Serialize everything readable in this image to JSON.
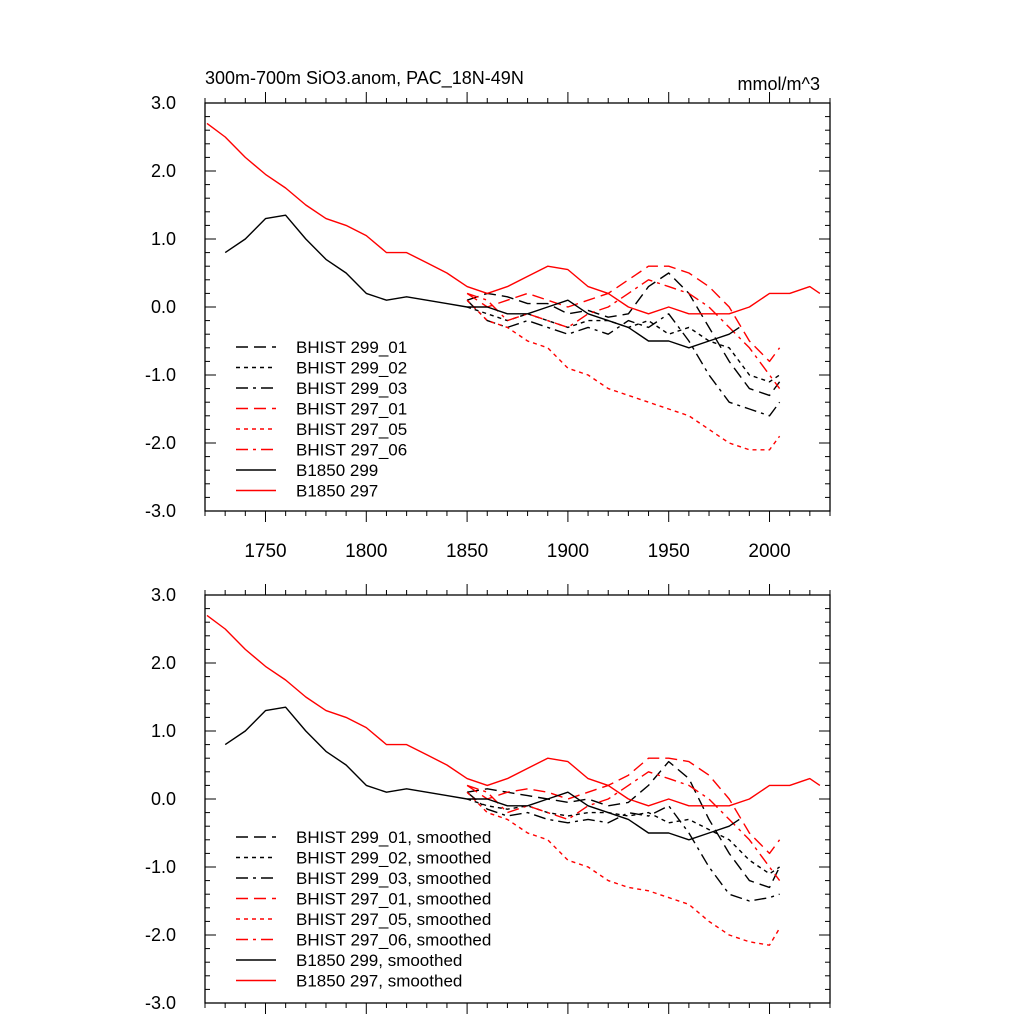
{
  "chart_data": [
    {
      "type": "line",
      "title": "300m-700m SiO3.anom, PAC_18N-49N",
      "units": "mmol/m^3",
      "xlim": [
        1720,
        2030
      ],
      "ylim": [
        -3.0,
        3.0
      ],
      "xticks": [
        1750,
        1800,
        1850,
        1900,
        1950,
        2000
      ],
      "xtick_labels": [
        "1750",
        "1800",
        "1850",
        "1900",
        "1950",
        "2000"
      ],
      "yticks": [
        3.0,
        2.0,
        1.0,
        0.0,
        -1.0,
        -2.0,
        -3.0
      ],
      "ytick_labels": [
        "3.0",
        "2.0",
        "1.0",
        "0.0",
        "-1.0",
        "-2.0",
        "-3.0"
      ],
      "legend_position": "bottom-left",
      "series": [
        {
          "name": "BHIST 299_01",
          "color": "#000000",
          "dash": "long-dash",
          "x": [
            1850,
            1860,
            1870,
            1880,
            1890,
            1900,
            1910,
            1920,
            1930,
            1940,
            1950,
            1960,
            1970,
            1980,
            1990,
            2000,
            2005
          ],
          "y": [
            0.1,
            0.2,
            0.15,
            0.05,
            0.05,
            -0.1,
            -0.05,
            -0.15,
            -0.1,
            0.3,
            0.5,
            0.2,
            -0.3,
            -0.8,
            -1.2,
            -1.3,
            -1.1
          ]
        },
        {
          "name": "BHIST 299_02",
          "color": "#000000",
          "dash": "short-dash",
          "x": [
            1850,
            1860,
            1870,
            1880,
            1890,
            1900,
            1910,
            1920,
            1930,
            1940,
            1950,
            1960,
            1970,
            1980,
            1990,
            2000,
            2005
          ],
          "y": [
            0.0,
            -0.1,
            -0.2,
            -0.1,
            -0.2,
            -0.3,
            -0.2,
            -0.2,
            -0.3,
            -0.2,
            -0.4,
            -0.3,
            -0.5,
            -0.6,
            -1.0,
            -1.1,
            -1.0
          ]
        },
        {
          "name": "BHIST 299_03",
          "color": "#000000",
          "dash": "dash-dot",
          "x": [
            1850,
            1860,
            1870,
            1880,
            1890,
            1900,
            1910,
            1920,
            1930,
            1940,
            1950,
            1960,
            1970,
            1980,
            1990,
            2000,
            2005
          ],
          "y": [
            0.1,
            -0.2,
            -0.3,
            -0.2,
            -0.3,
            -0.4,
            -0.3,
            -0.4,
            -0.2,
            -0.3,
            -0.1,
            -0.5,
            -1.0,
            -1.4,
            -1.5,
            -1.6,
            -1.4
          ]
        },
        {
          "name": "BHIST 297_01",
          "color": "#ff0000",
          "dash": "long-dash",
          "x": [
            1850,
            1860,
            1870,
            1880,
            1890,
            1900,
            1910,
            1920,
            1930,
            1940,
            1950,
            1960,
            1970,
            1980,
            1990,
            2000,
            2005
          ],
          "y": [
            0.2,
            0.0,
            0.1,
            0.2,
            0.1,
            0.0,
            0.1,
            0.2,
            0.4,
            0.6,
            0.6,
            0.5,
            0.3,
            0.0,
            -0.5,
            -0.8,
            -0.6
          ]
        },
        {
          "name": "BHIST 297_05",
          "color": "#ff0000",
          "dash": "short-dash",
          "x": [
            1850,
            1860,
            1870,
            1880,
            1890,
            1900,
            1910,
            1920,
            1930,
            1940,
            1950,
            1960,
            1970,
            1980,
            1990,
            2000,
            2005
          ],
          "y": [
            0.1,
            -0.2,
            -0.3,
            -0.5,
            -0.6,
            -0.9,
            -1.0,
            -1.2,
            -1.3,
            -1.4,
            -1.5,
            -1.6,
            -1.8,
            -2.0,
            -2.1,
            -2.1,
            -1.9
          ]
        },
        {
          "name": "BHIST 297_06",
          "color": "#ff0000",
          "dash": "dash-dot",
          "x": [
            1850,
            1860,
            1870,
            1880,
            1890,
            1900,
            1910,
            1920,
            1930,
            1940,
            1950,
            1960,
            1970,
            1980,
            1990,
            2000,
            2005
          ],
          "y": [
            0.2,
            0.1,
            -0.2,
            -0.1,
            -0.2,
            -0.3,
            -0.1,
            0.0,
            0.2,
            0.4,
            0.3,
            0.2,
            0.0,
            -0.3,
            -0.6,
            -1.0,
            -1.2
          ]
        },
        {
          "name": "B1850 299",
          "color": "#000000",
          "dash": "solid",
          "x": [
            1730,
            1740,
            1750,
            1760,
            1770,
            1780,
            1790,
            1800,
            1810,
            1820,
            1830,
            1840,
            1850,
            1860,
            1870,
            1880,
            1890,
            1900,
            1910,
            1920,
            1930,
            1940,
            1950,
            1960,
            1970,
            1980,
            1985
          ],
          "y": [
            0.8,
            1.0,
            1.3,
            1.35,
            1.0,
            0.7,
            0.5,
            0.2,
            0.1,
            0.15,
            0.1,
            0.05,
            0.0,
            0.0,
            -0.1,
            -0.1,
            0.0,
            0.1,
            -0.1,
            -0.2,
            -0.3,
            -0.5,
            -0.5,
            -0.6,
            -0.5,
            -0.4,
            -0.3
          ]
        },
        {
          "name": "B1850 297",
          "color": "#ff0000",
          "dash": "solid",
          "x": [
            1721,
            1730,
            1740,
            1750,
            1760,
            1770,
            1780,
            1790,
            1800,
            1810,
            1820,
            1830,
            1840,
            1850,
            1860,
            1870,
            1880,
            1890,
            1900,
            1910,
            1920,
            1930,
            1940,
            1950,
            1960,
            1970,
            1980,
            1990,
            2000,
            2010,
            2020,
            2025
          ],
          "y": [
            2.7,
            2.5,
            2.2,
            1.95,
            1.75,
            1.5,
            1.3,
            1.2,
            1.05,
            0.8,
            0.8,
            0.65,
            0.5,
            0.3,
            0.2,
            0.3,
            0.45,
            0.6,
            0.55,
            0.3,
            0.2,
            0.0,
            -0.1,
            0.0,
            -0.1,
            -0.1,
            -0.1,
            0.0,
            0.2,
            0.2,
            0.3,
            0.2
          ]
        }
      ]
    },
    {
      "type": "line",
      "xlim": [
        1720,
        2030
      ],
      "ylim": [
        -3.0,
        3.0
      ],
      "yticks": [
        3.0,
        2.0,
        1.0,
        0.0,
        -1.0,
        -2.0,
        -3.0
      ],
      "ytick_labels": [
        "3.0",
        "2.0",
        "1.0",
        "0.0",
        "-1.0",
        "-2.0",
        "-3.0"
      ],
      "legend_position": "bottom-left",
      "series": [
        {
          "name": "BHIST 299_01, smoothed",
          "color": "#000000",
          "dash": "long-dash",
          "x": [
            1850,
            1860,
            1870,
            1880,
            1890,
            1900,
            1910,
            1920,
            1930,
            1940,
            1950,
            1960,
            1970,
            1980,
            1990,
            2000,
            2005
          ],
          "y": [
            0.1,
            0.15,
            0.1,
            0.05,
            0.0,
            -0.05,
            0.0,
            -0.1,
            -0.05,
            0.2,
            0.55,
            0.3,
            -0.3,
            -0.8,
            -1.2,
            -1.3,
            -1.0
          ]
        },
        {
          "name": "BHIST 299_02, smoothed",
          "color": "#000000",
          "dash": "short-dash",
          "x": [
            1850,
            1860,
            1870,
            1880,
            1890,
            1900,
            1910,
            1920,
            1930,
            1940,
            1950,
            1960,
            1970,
            1980,
            1990,
            2000,
            2005
          ],
          "y": [
            0.0,
            -0.1,
            -0.15,
            -0.1,
            -0.2,
            -0.25,
            -0.2,
            -0.2,
            -0.25,
            -0.2,
            -0.35,
            -0.3,
            -0.45,
            -0.6,
            -0.9,
            -1.1,
            -1.0
          ]
        },
        {
          "name": "BHIST 299_03, smoothed",
          "color": "#000000",
          "dash": "dash-dot",
          "x": [
            1850,
            1860,
            1870,
            1880,
            1890,
            1900,
            1910,
            1920,
            1930,
            1940,
            1950,
            1960,
            1970,
            1980,
            1990,
            2000,
            2005
          ],
          "y": [
            0.1,
            -0.15,
            -0.25,
            -0.2,
            -0.3,
            -0.35,
            -0.3,
            -0.35,
            -0.2,
            -0.25,
            -0.1,
            -0.5,
            -1.0,
            -1.4,
            -1.5,
            -1.45,
            -1.4
          ]
        },
        {
          "name": "BHIST 297_01, smoothed",
          "color": "#ff0000",
          "dash": "long-dash",
          "x": [
            1850,
            1860,
            1870,
            1880,
            1890,
            1900,
            1910,
            1920,
            1930,
            1940,
            1950,
            1960,
            1970,
            1980,
            1990,
            2000,
            2005
          ],
          "y": [
            0.2,
            0.0,
            0.1,
            0.15,
            0.1,
            0.0,
            0.1,
            0.2,
            0.35,
            0.6,
            0.6,
            0.55,
            0.35,
            0.0,
            -0.5,
            -0.8,
            -0.6
          ]
        },
        {
          "name": "BHIST 297_05, smoothed",
          "color": "#ff0000",
          "dash": "short-dash",
          "x": [
            1850,
            1860,
            1870,
            1880,
            1890,
            1900,
            1910,
            1920,
            1930,
            1940,
            1950,
            1960,
            1970,
            1980,
            1990,
            2000,
            2005
          ],
          "y": [
            0.1,
            -0.2,
            -0.3,
            -0.5,
            -0.6,
            -0.9,
            -1.0,
            -1.2,
            -1.3,
            -1.35,
            -1.45,
            -1.55,
            -1.8,
            -2.0,
            -2.1,
            -2.15,
            -1.9
          ]
        },
        {
          "name": "BHIST 297_06, smoothed",
          "color": "#ff0000",
          "dash": "dash-dot",
          "x": [
            1850,
            1860,
            1870,
            1880,
            1890,
            1900,
            1910,
            1920,
            1930,
            1940,
            1950,
            1960,
            1970,
            1980,
            1990,
            2000,
            2005
          ],
          "y": [
            0.2,
            0.1,
            -0.2,
            -0.1,
            -0.2,
            -0.3,
            -0.1,
            0.0,
            0.2,
            0.4,
            0.3,
            0.2,
            0.0,
            -0.3,
            -0.6,
            -1.0,
            -1.2
          ]
        },
        {
          "name": "B1850 299, smoothed",
          "color": "#000000",
          "dash": "solid",
          "x": [
            1730,
            1740,
            1750,
            1760,
            1770,
            1780,
            1790,
            1800,
            1810,
            1820,
            1830,
            1840,
            1850,
            1860,
            1870,
            1880,
            1890,
            1900,
            1910,
            1920,
            1930,
            1940,
            1950,
            1960,
            1970,
            1980,
            1985
          ],
          "y": [
            0.8,
            1.0,
            1.3,
            1.35,
            1.0,
            0.7,
            0.5,
            0.2,
            0.1,
            0.15,
            0.1,
            0.05,
            0.0,
            0.0,
            -0.1,
            -0.1,
            0.0,
            0.1,
            -0.1,
            -0.2,
            -0.3,
            -0.5,
            -0.5,
            -0.6,
            -0.5,
            -0.4,
            -0.3
          ]
        },
        {
          "name": "B1850 297, smoothed",
          "color": "#ff0000",
          "dash": "solid",
          "x": [
            1721,
            1730,
            1740,
            1750,
            1760,
            1770,
            1780,
            1790,
            1800,
            1810,
            1820,
            1830,
            1840,
            1850,
            1860,
            1870,
            1880,
            1890,
            1900,
            1910,
            1920,
            1930,
            1940,
            1950,
            1960,
            1970,
            1980,
            1990,
            2000,
            2010,
            2020,
            2025
          ],
          "y": [
            2.7,
            2.5,
            2.2,
            1.95,
            1.75,
            1.5,
            1.3,
            1.2,
            1.05,
            0.8,
            0.8,
            0.65,
            0.5,
            0.3,
            0.2,
            0.3,
            0.45,
            0.6,
            0.55,
            0.3,
            0.2,
            0.0,
            -0.1,
            0.0,
            -0.1,
            -0.1,
            -0.1,
            0.0,
            0.2,
            0.2,
            0.3,
            0.2
          ]
        }
      ]
    }
  ]
}
